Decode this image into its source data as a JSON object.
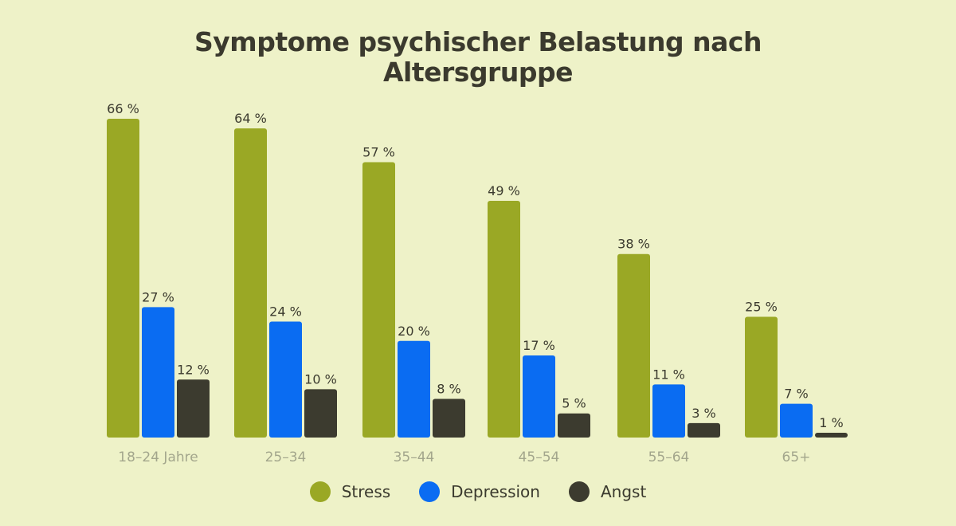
{
  "chart_data": {
    "type": "bar",
    "title_lines": [
      "Symptome psychischer Belastung nach",
      "Altersgruppe"
    ],
    "categories": [
      "18–24 Jahre",
      "25–34",
      "35–44",
      "45–54",
      "55–64",
      "65+"
    ],
    "series": [
      {
        "name": "Stress",
        "color": "#9aa825",
        "values": [
          66,
          64,
          57,
          49,
          38,
          25
        ],
        "labels": [
          "66 %",
          "64 %",
          "57 %",
          "49 %",
          "38 %",
          "25 %"
        ]
      },
      {
        "name": "Depression",
        "color": "#0a6cf2",
        "values": [
          27,
          24,
          20,
          17,
          11,
          7
        ],
        "labels": [
          "27 %",
          "24 %",
          "20 %",
          "17 %",
          "11 %",
          "7 %"
        ]
      },
      {
        "name": "Angst",
        "color": "#3c3b2f",
        "values": [
          12,
          10,
          8,
          5,
          3,
          1
        ],
        "labels": [
          "12 %",
          "10 %",
          "8 %",
          "5 %",
          "3 %",
          "1 %"
        ]
      }
    ],
    "ylim": [
      0,
      66
    ],
    "grid": false,
    "legend_position": "bottom-center"
  },
  "colors": {
    "background": "#eef2c8",
    "text": "#3b3a2e",
    "category_label": "#a3a68c"
  }
}
